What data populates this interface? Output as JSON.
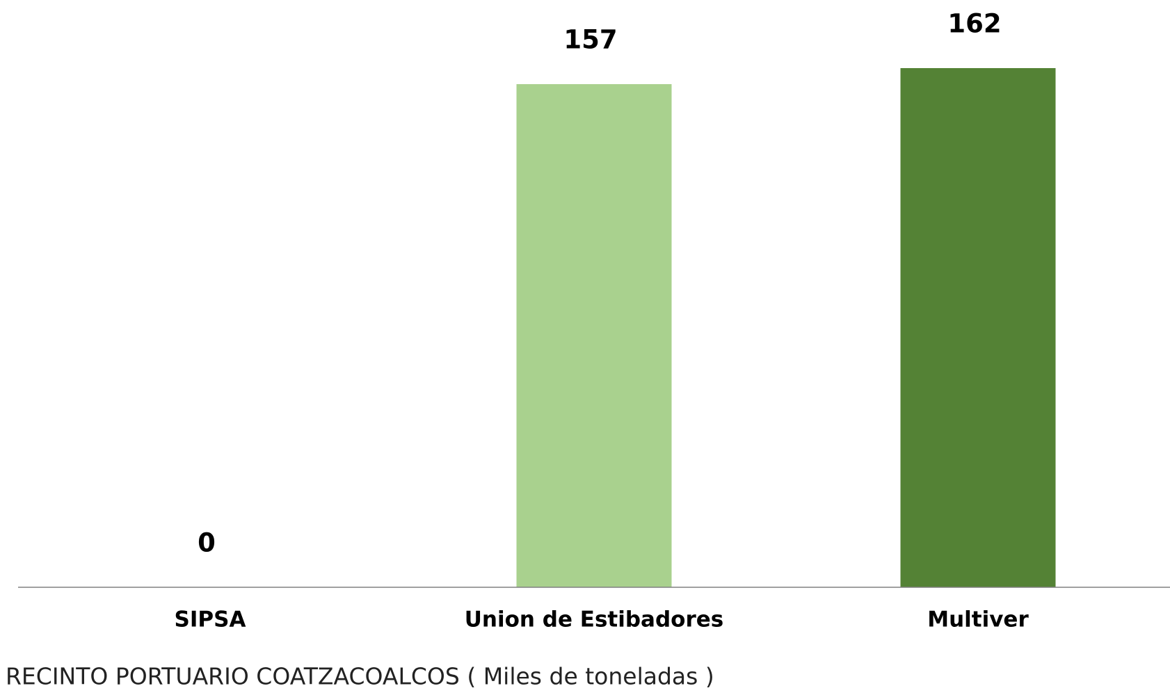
{
  "chart_data": {
    "type": "bar",
    "title": "RECINTO PORTUARIO COATZACOALCOS ( Miles de toneladas )",
    "categories": [
      "SIPSA",
      "Union de Estibadores",
      "Multiver"
    ],
    "values": [
      0,
      157,
      162
    ],
    "colors": [
      "#a9d18e",
      "#a9d18e",
      "#548235"
    ]
  }
}
